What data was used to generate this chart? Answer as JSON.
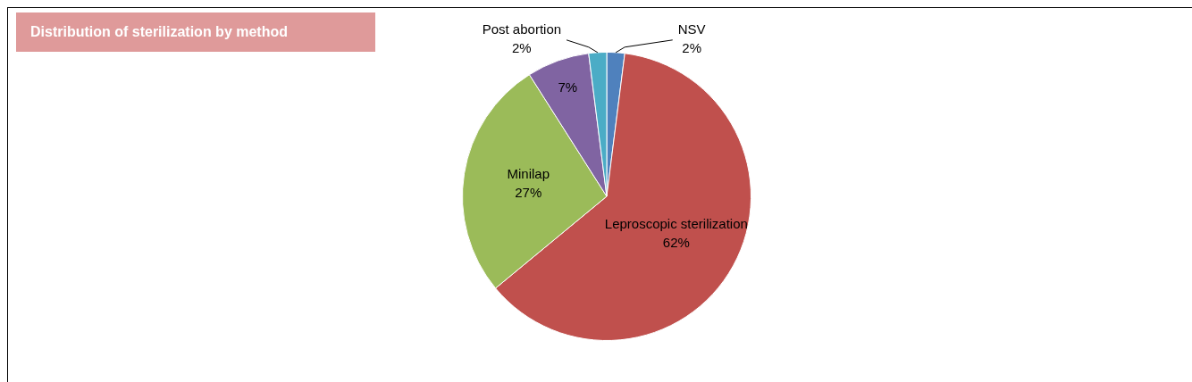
{
  "chart_data": {
    "type": "pie",
    "title": "Distribution of sterilization by method",
    "categories": [
      "NSV",
      "Leproscopic sterilization",
      "Minilap",
      null,
      "Post abortion"
    ],
    "values": [
      2,
      62,
      27,
      7,
      2
    ],
    "colors": [
      "#4f81bd",
      "#c0504d",
      "#9bbb59",
      "#8064a2",
      "#4bacc6"
    ],
    "value_labels": [
      "2%",
      "62%",
      "27%",
      "7%",
      "2%"
    ],
    "legend": false
  }
}
